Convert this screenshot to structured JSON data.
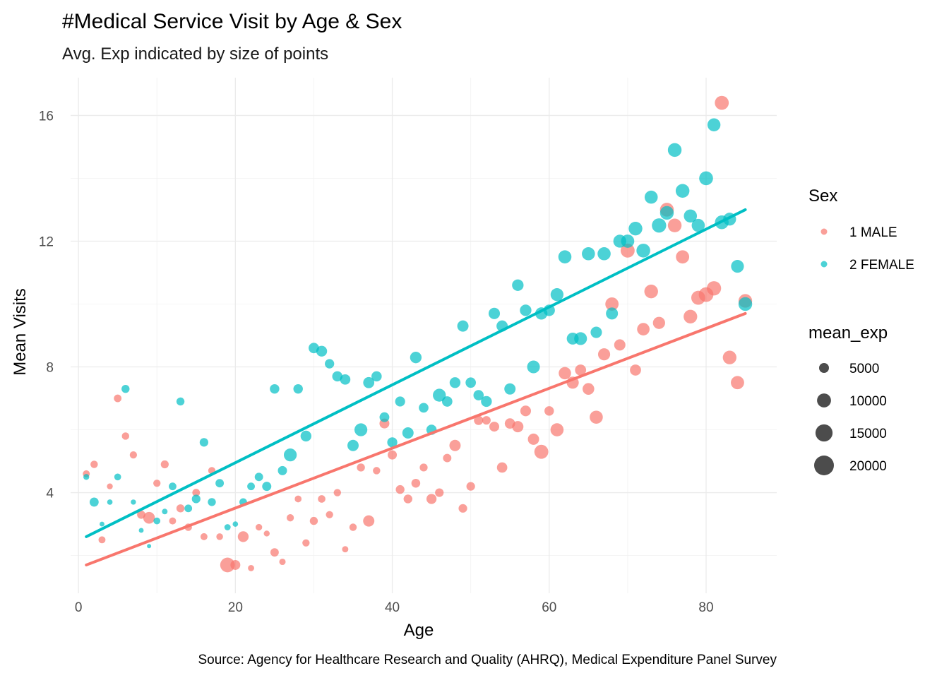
{
  "chart_data": {
    "type": "scatter",
    "title": "#Medical Service Visit by Age & Sex",
    "subtitle": "Avg. Exp indicated by size of points",
    "xlabel": "Age",
    "ylabel": "Mean Visits",
    "caption": "Source: Agency for Healthcare Research and Quality (AHRQ), Medical Expenditure Panel Survey",
    "xlim": [
      -1,
      89
    ],
    "ylim": [
      0.8,
      17.2
    ],
    "xticks": [
      0,
      20,
      40,
      60,
      80
    ],
    "yticks": [
      4,
      8,
      12,
      16
    ],
    "grid": true,
    "legend_position": "right",
    "size_legend": {
      "title": "mean_exp",
      "values": [
        5000,
        10000,
        15000,
        20000
      ],
      "labels": [
        "5000",
        "10000",
        "15000",
        "20000"
      ]
    },
    "color_legend": {
      "title": "Sex"
    },
    "series": [
      {
        "name": "1 MALE",
        "color": "#F8766D",
        "trend": [
          [
            1,
            1.7
          ],
          [
            85,
            9.7
          ]
        ],
        "points": [
          [
            1,
            4.6,
            2500
          ],
          [
            2,
            4.9,
            2800
          ],
          [
            3,
            2.5,
            2500
          ],
          [
            4,
            4.2,
            1800
          ],
          [
            5,
            7.0,
            3000
          ],
          [
            6,
            5.8,
            2800
          ],
          [
            7,
            5.2,
            2700
          ],
          [
            8,
            3.3,
            3500
          ],
          [
            9,
            3.2,
            7000
          ],
          [
            10,
            4.3,
            2700
          ],
          [
            11,
            4.9,
            3200
          ],
          [
            12,
            3.1,
            2500
          ],
          [
            13,
            3.5,
            3300
          ],
          [
            14,
            2.9,
            2800
          ],
          [
            15,
            4.0,
            3000
          ],
          [
            16,
            2.6,
            2500
          ],
          [
            17,
            4.7,
            2700
          ],
          [
            18,
            2.6,
            2300
          ],
          [
            19,
            1.7,
            11000
          ],
          [
            20,
            1.7,
            5000
          ],
          [
            21,
            2.6,
            6000
          ],
          [
            22,
            1.6,
            2000
          ],
          [
            23,
            2.9,
            2200
          ],
          [
            24,
            2.7,
            1800
          ],
          [
            25,
            2.1,
            3600
          ],
          [
            26,
            1.8,
            2100
          ],
          [
            27,
            3.2,
            2700
          ],
          [
            28,
            3.8,
            2400
          ],
          [
            29,
            2.4,
            2700
          ],
          [
            30,
            3.1,
            3300
          ],
          [
            31,
            3.8,
            2900
          ],
          [
            32,
            3.3,
            2700
          ],
          [
            33,
            4.0,
            2800
          ],
          [
            34,
            2.2,
            2000
          ],
          [
            35,
            2.9,
            2800
          ],
          [
            36,
            4.8,
            3300
          ],
          [
            37,
            3.1,
            6500
          ],
          [
            38,
            4.7,
            2800
          ],
          [
            39,
            6.2,
            5000
          ],
          [
            40,
            5.2,
            4300
          ],
          [
            41,
            4.1,
            3900
          ],
          [
            42,
            3.8,
            3900
          ],
          [
            43,
            4.3,
            4000
          ],
          [
            44,
            4.8,
            3200
          ],
          [
            45,
            3.8,
            5200
          ],
          [
            46,
            4.0,
            3800
          ],
          [
            47,
            5.1,
            3600
          ],
          [
            48,
            5.5,
            6500
          ],
          [
            49,
            3.5,
            3800
          ],
          [
            50,
            4.2,
            3800
          ],
          [
            51,
            6.3,
            4400
          ],
          [
            52,
            6.3,
            3700
          ],
          [
            53,
            6.1,
            5000
          ],
          [
            54,
            4.8,
            5500
          ],
          [
            55,
            6.2,
            5500
          ],
          [
            56,
            6.1,
            6500
          ],
          [
            57,
            6.6,
            5800
          ],
          [
            58,
            5.7,
            6500
          ],
          [
            59,
            5.3,
            10000
          ],
          [
            60,
            6.6,
            4600
          ],
          [
            61,
            6.0,
            8800
          ],
          [
            62,
            7.8,
            7800
          ],
          [
            63,
            7.5,
            7500
          ],
          [
            64,
            7.9,
            6300
          ],
          [
            65,
            7.3,
            7000
          ],
          [
            66,
            6.4,
            8800
          ],
          [
            67,
            8.4,
            7500
          ],
          [
            68,
            10.0,
            9000
          ],
          [
            69,
            8.7,
            6500
          ],
          [
            70,
            11.7,
            10000
          ],
          [
            71,
            7.9,
            6300
          ],
          [
            72,
            9.2,
            8000
          ],
          [
            73,
            10.4,
            9600
          ],
          [
            74,
            9.4,
            7600
          ],
          [
            75,
            13.0,
            9800
          ],
          [
            76,
            12.5,
            9600
          ],
          [
            77,
            11.5,
            9000
          ],
          [
            78,
            9.6,
            9500
          ],
          [
            79,
            10.2,
            10000
          ],
          [
            80,
            10.3,
            11000
          ],
          [
            81,
            10.5,
            10500
          ],
          [
            82,
            16.4,
            10000
          ],
          [
            83,
            8.3,
            9500
          ],
          [
            84,
            7.5,
            9000
          ],
          [
            85,
            10.1,
            9500
          ]
        ]
      },
      {
        "name": "2 FEMALE",
        "color": "#00BFC4",
        "trend": [
          [
            1,
            2.6
          ],
          [
            85,
            13.0
          ]
        ],
        "points": [
          [
            1,
            4.5,
            1800
          ],
          [
            2,
            3.7,
            4200
          ],
          [
            3,
            3.0,
            1200
          ],
          [
            4,
            3.7,
            1500
          ],
          [
            5,
            4.5,
            2400
          ],
          [
            6,
            7.3,
            3300
          ],
          [
            7,
            3.7,
            1400
          ],
          [
            8,
            2.8,
            1200
          ],
          [
            9,
            2.3,
            900
          ],
          [
            10,
            3.1,
            2400
          ],
          [
            11,
            3.4,
            1600
          ],
          [
            12,
            4.2,
            3000
          ],
          [
            13,
            6.9,
            3300
          ],
          [
            14,
            3.5,
            3000
          ],
          [
            15,
            3.8,
            3800
          ],
          [
            16,
            5.6,
            3800
          ],
          [
            17,
            3.7,
            3300
          ],
          [
            18,
            4.3,
            3600
          ],
          [
            19,
            2.9,
            2000
          ],
          [
            20,
            3.0,
            1500
          ],
          [
            21,
            3.7,
            3000
          ],
          [
            22,
            4.2,
            3000
          ],
          [
            23,
            4.5,
            3600
          ],
          [
            24,
            4.2,
            4300
          ],
          [
            25,
            7.3,
            4600
          ],
          [
            26,
            4.7,
            4300
          ],
          [
            27,
            5.2,
            8500
          ],
          [
            28,
            7.3,
            4600
          ],
          [
            29,
            5.8,
            6000
          ],
          [
            30,
            8.6,
            5600
          ],
          [
            31,
            8.5,
            6000
          ],
          [
            32,
            8.1,
            4500
          ],
          [
            33,
            7.7,
            5400
          ],
          [
            34,
            7.6,
            5500
          ],
          [
            35,
            5.5,
            6500
          ],
          [
            36,
            6.0,
            8500
          ],
          [
            37,
            7.5,
            6300
          ],
          [
            38,
            7.7,
            5400
          ],
          [
            39,
            6.4,
            4900
          ],
          [
            40,
            5.6,
            5200
          ],
          [
            41,
            6.9,
            5100
          ],
          [
            42,
            5.9,
            6500
          ],
          [
            43,
            8.3,
            6800
          ],
          [
            44,
            6.7,
            4800
          ],
          [
            45,
            6.0,
            5400
          ],
          [
            46,
            7.1,
            8600
          ],
          [
            47,
            6.9,
            5500
          ],
          [
            48,
            7.5,
            6000
          ],
          [
            49,
            9.3,
            6500
          ],
          [
            50,
            7.5,
            5500
          ],
          [
            51,
            7.1,
            5400
          ],
          [
            52,
            6.9,
            6000
          ],
          [
            53,
            9.7,
            6600
          ],
          [
            54,
            9.3,
            6500
          ],
          [
            55,
            7.3,
            6500
          ],
          [
            56,
            10.6,
            6800
          ],
          [
            57,
            9.8,
            6800
          ],
          [
            58,
            8.0,
            8300
          ],
          [
            59,
            9.7,
            7700
          ],
          [
            60,
            9.8,
            6700
          ],
          [
            61,
            10.3,
            8500
          ],
          [
            62,
            11.5,
            8800
          ],
          [
            63,
            8.9,
            7300
          ],
          [
            64,
            8.9,
            8400
          ],
          [
            65,
            11.6,
            8800
          ],
          [
            66,
            9.1,
            6600
          ],
          [
            67,
            11.6,
            8800
          ],
          [
            68,
            9.7,
            7400
          ],
          [
            69,
            12.0,
            8600
          ],
          [
            70,
            12.0,
            9000
          ],
          [
            71,
            12.4,
            9600
          ],
          [
            72,
            11.7,
            9700
          ],
          [
            73,
            13.4,
            8800
          ],
          [
            74,
            12.5,
            10500
          ],
          [
            75,
            12.9,
            9600
          ],
          [
            76,
            14.9,
            9600
          ],
          [
            77,
            13.6,
            9700
          ],
          [
            78,
            12.8,
            8800
          ],
          [
            79,
            12.5,
            8800
          ],
          [
            80,
            14.0,
            9800
          ],
          [
            81,
            15.7,
            8700
          ],
          [
            82,
            12.6,
            9600
          ],
          [
            83,
            12.7,
            8500
          ],
          [
            84,
            11.2,
            8400
          ],
          [
            85,
            10.0,
            9600
          ]
        ]
      }
    ]
  }
}
